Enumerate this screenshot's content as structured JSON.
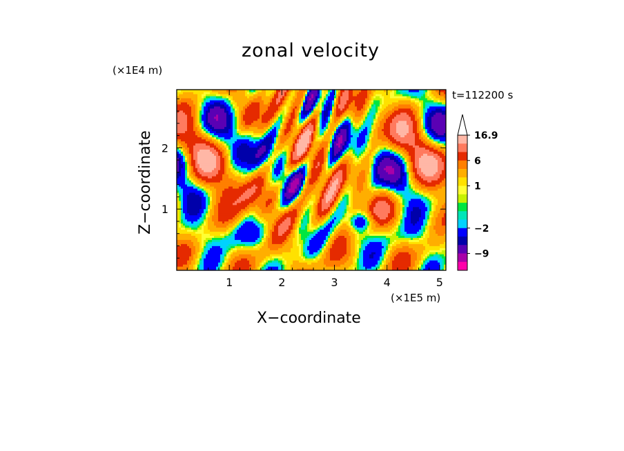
{
  "chart_data": {
    "type": "heatmap",
    "title": "zonal velocity",
    "xlabel": "X−coordinate",
    "ylabel": "Z−coordinate",
    "x_multiplier_label": "(×1E5 m)",
    "y_multiplier_label": "(×1E4 m)",
    "timestamp_label": "t=112200 s",
    "xlim": [
      0,
      5.12
    ],
    "ylim": [
      0,
      2.95
    ],
    "x_ticks": [
      "1",
      "2",
      "3",
      "4",
      "5"
    ],
    "y_ticks": [
      "1",
      "2"
    ],
    "colorbar": {
      "levels": [
        16.9,
        12,
        9,
        6,
        4,
        2,
        1,
        0.5,
        0,
        -0.5,
        -1,
        -2,
        -4,
        -6,
        -9,
        -12,
        -15
      ],
      "labels": [
        "16.9",
        "6",
        "1",
        "−2",
        "−9"
      ],
      "extend_top": true,
      "colors": [
        "#ffb7a6",
        "#ff7a5e",
        "#e52a00",
        "#ff7f00",
        "#ffae00",
        "#ffe100",
        "#ffff33",
        "#c7f200",
        "#00e640",
        "#00e5b8",
        "#00d2ff",
        "#0000ff",
        "#0000aa",
        "#5a00b4",
        "#a800a8",
        "#ff00aa"
      ]
    }
  }
}
